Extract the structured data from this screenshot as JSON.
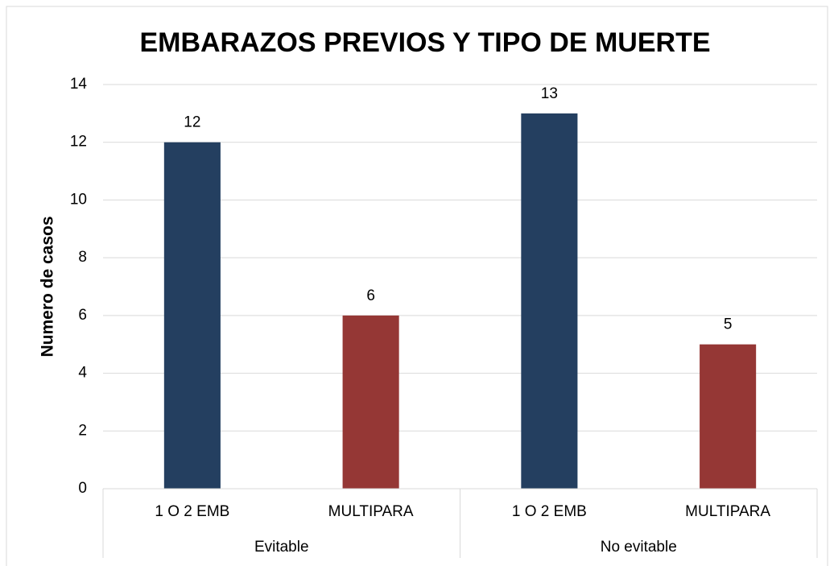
{
  "chart_data": {
    "type": "bar",
    "title": "EMBARAZOS PREVIOS Y TIPO DE MUERTE",
    "y_label": "Numero de casos",
    "groups": [
      {
        "name": "Evitable",
        "categories": [
          "1 O 2 EMB",
          "MULTIPARA"
        ],
        "values": [
          12,
          6
        ],
        "colors": [
          "#243f60",
          "#953735"
        ]
      },
      {
        "name": "No evitable",
        "categories": [
          "1 O 2 EMB",
          "MULTIPARA"
        ],
        "values": [
          13,
          5
        ],
        "colors": [
          "#243f60",
          "#953735"
        ]
      }
    ],
    "ylim": [
      0,
      14
    ],
    "yticks": [
      0,
      2,
      4,
      6,
      8,
      10,
      12,
      14
    ],
    "grid": true
  }
}
